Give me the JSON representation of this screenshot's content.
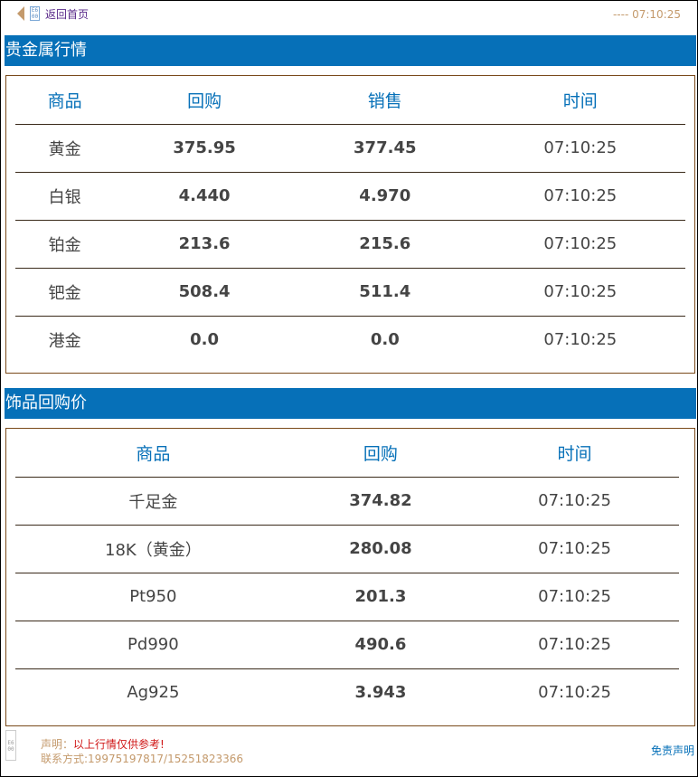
{
  "header": {
    "back_label": "返回首页",
    "clock": "---- 07:10:25"
  },
  "section1": {
    "title": "贵金属行情",
    "columns": [
      "商品",
      "回购",
      "销售",
      "时间"
    ],
    "rows": [
      [
        "黄金",
        "375.95",
        "377.45",
        "07:10:25"
      ],
      [
        "白银",
        "4.440",
        "4.970",
        "07:10:25"
      ],
      [
        "铂金",
        "213.6",
        "215.6",
        "07:10:25"
      ],
      [
        "钯金",
        "508.4",
        "511.4",
        "07:10:25"
      ],
      [
        "港金",
        "0.0",
        "0.0",
        "07:10:25"
      ]
    ]
  },
  "section2": {
    "title": "饰品回购价",
    "columns": [
      "商品",
      "回购",
      "时间"
    ],
    "rows": [
      [
        "千足金",
        "374.82",
        "07:10:25"
      ],
      [
        "18K（黄金）",
        "280.08",
        "07:10:25"
      ],
      [
        "Pt950",
        "201.3",
        "07:10:25"
      ],
      [
        "Pd990",
        "490.6",
        "07:10:25"
      ],
      [
        "Ag925",
        "3.943",
        "07:10:25"
      ]
    ]
  },
  "footer": {
    "notice_label": "声明：",
    "notice_text": "以上行情仅供参考!",
    "contact": "联系方式:19975197817/15251823366",
    "disclaimer": "免责声明"
  },
  "colors": {
    "accent": "#0670b8",
    "border": "#7a4a1a",
    "muted": "#c49a6c"
  }
}
